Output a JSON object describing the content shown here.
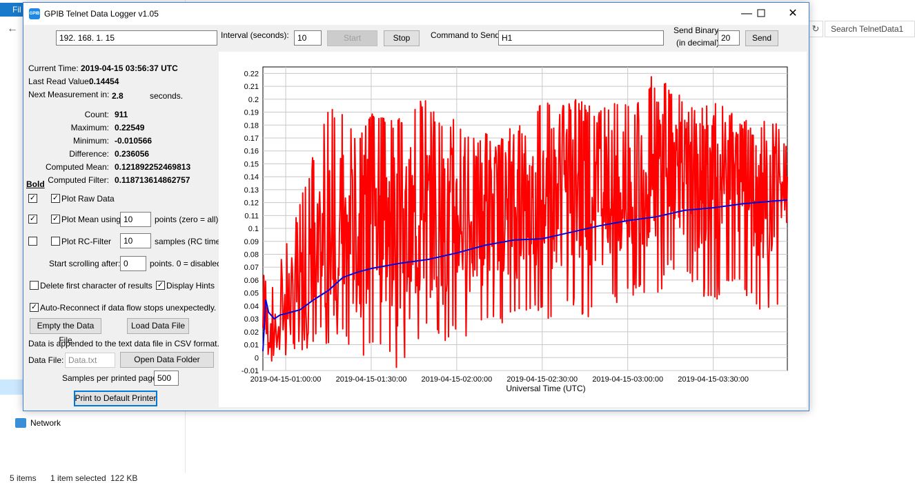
{
  "background": {
    "file_tab": "Fil",
    "network_label": "Network",
    "search_placeholder": "Search TelnetData1",
    "status_items": "5 items",
    "status_selected": "1 item selected",
    "status_size": "122 KB"
  },
  "window": {
    "title": "GPIB Telnet Data Logger v1.05",
    "icon_text": "GPIB"
  },
  "toolbar": {
    "ip_value": "192. 168. 1. 15",
    "interval_label": "Interval (seconds):",
    "interval_value": "10",
    "start_label": "Start",
    "stop_label": "Stop",
    "command_label": "Command to Send:",
    "command_value": "H1",
    "send_binary_label1": "Send Binary",
    "send_binary_label2": "(in decimal)",
    "send_binary_value": "20",
    "send_label": "Send"
  },
  "status": {
    "current_time_label": "Current Time:",
    "current_time_value": "2019-04-15 03:56:37 UTC",
    "last_read_label": "Last Read Value:",
    "last_read_value": "0.14454",
    "next_meas_label": "Next Measurement in:",
    "next_meas_value": "2.8",
    "next_meas_unit": "seconds."
  },
  "stats": {
    "count_label": "Count:",
    "count_value": "911",
    "max_label": "Maximum:",
    "max_value": "0.22549",
    "min_label": "Minimum:",
    "min_value": "-0.010566",
    "diff_label": "Difference:",
    "diff_value": "0.236056",
    "mean_label": "Computed Mean:",
    "mean_value": "0.121892252469813",
    "filter_label": "Computed Filter:",
    "filter_value": "0.118713614862757"
  },
  "options": {
    "bold_label": "Bold",
    "plot_raw_label": "Plot Raw Data",
    "plot_mean_label": "Plot Mean using",
    "plot_mean_value": "10",
    "plot_mean_unit": "points (zero = all).",
    "plot_rc_label": "Plot RC-Filter",
    "plot_rc_value": "10",
    "plot_rc_unit": "samples (RC time)",
    "scroll_label": "Start scrolling after:",
    "scroll_value": "0",
    "scroll_unit": "points.  0 = disabled.",
    "delete_first_label": "Delete first character of results",
    "display_hints_label": "Display Hints",
    "auto_reconnect_label": "Auto-Reconnect if data flow stops unexpectedly.",
    "check_mark": "✓"
  },
  "file": {
    "empty_label": "Empty the Data File",
    "load_label": "Load Data File",
    "append_note": "Data is appended to the text data file in CSV format.",
    "data_file_label": "Data File:",
    "data_file_placeholder": "Data.txt",
    "open_folder_label": "Open Data Folder",
    "samples_label": "Samples per printed page:",
    "samples_value": "500",
    "print_label": "Print to Default Printer"
  },
  "chart_data": {
    "type": "line",
    "xlabel": "Universal Time (UTC)",
    "ylabel": "",
    "ylim": [
      -0.01,
      0.225
    ],
    "y_ticks": [
      "0.22",
      "0.21",
      "0.2",
      "0.19",
      "0.18",
      "0.17",
      "0.16",
      "0.15",
      "0.14",
      "0.13",
      "0.12",
      "0.11",
      "0.1",
      "0.09",
      "0.08",
      "0.07",
      "0.06",
      "0.05",
      "0.04",
      "0.03",
      "0.02",
      "0.01",
      "0",
      "-0.01"
    ],
    "x_ticks": [
      "2019-04-15-01:00:00",
      "2019-04-15-01:30:00",
      "2019-04-15-02:00:00",
      "2019-04-15-02:30:00",
      "2019-04-15-03:00:00",
      "2019-04-15-03:30:00"
    ],
    "x_range": [
      "2019-04-15 00:52:00",
      "2019-04-15 03:56:30"
    ],
    "grid": true,
    "series": [
      {
        "color": "#ff0000",
        "style": "raw",
        "x": [
          "00:52",
          "01:00",
          "01:05",
          "01:10",
          "01:15",
          "01:20",
          "01:25",
          "01:30",
          "01:35",
          "01:40",
          "01:45",
          "01:50",
          "01:55",
          "02:00",
          "02:05",
          "02:10",
          "02:15",
          "02:20",
          "02:25",
          "02:30",
          "02:35",
          "02:40",
          "02:45",
          "02:50",
          "02:55",
          "03:00",
          "03:05",
          "03:10",
          "03:15",
          "03:20",
          "03:25",
          "03:30",
          "03:35",
          "03:40",
          "03:45",
          "03:50",
          "03:56"
        ],
        "y": [
          0.02,
          0.04,
          0.05,
          0.06,
          0.09,
          0.1,
          0.09,
          0.1,
          0.1,
          0.09,
          0.1,
          0.11,
          0.1,
          0.11,
          0.1,
          0.11,
          0.12,
          0.11,
          0.12,
          0.12,
          0.13,
          0.12,
          0.13,
          0.13,
          0.12,
          0.13,
          0.14,
          0.15,
          0.16,
          0.14,
          0.13,
          0.14,
          0.15,
          0.14,
          0.13,
          0.12,
          0.14
        ],
        "y_high": [
          0.065,
          0.09,
          0.12,
          0.16,
          0.195,
          0.19,
          0.17,
          0.19,
          0.19,
          0.185,
          0.2,
          0.2,
          0.18,
          0.19,
          0.17,
          0.18,
          0.17,
          0.18,
          0.18,
          0.2,
          0.195,
          0.2,
          0.2,
          0.19,
          0.2,
          0.2,
          0.205,
          0.225,
          0.21,
          0.2,
          0.195,
          0.2,
          0.19,
          0.185,
          0.18,
          0.19,
          0.17
        ],
        "y_low": [
          -0.005,
          0.0,
          0.005,
          0.01,
          0.005,
          0.015,
          -0.005,
          0.01,
          0.0,
          -0.01,
          0.01,
          0.02,
          0.01,
          0.02,
          0.015,
          0.03,
          0.02,
          0.03,
          0.035,
          0.03,
          0.03,
          0.04,
          0.03,
          0.03,
          0.04,
          0.045,
          0.05,
          0.04,
          0.07,
          0.06,
          0.05,
          0.04,
          0.06,
          0.05,
          0.04,
          0.03,
          0.05
        ]
      },
      {
        "color": "#0000dd",
        "style": "mean",
        "x": [
          "00:52",
          "00:53",
          "00:54",
          "00:56",
          "00:58",
          "01:00",
          "01:05",
          "01:10",
          "01:15",
          "01:20",
          "01:25",
          "01:30",
          "01:40",
          "01:50",
          "02:00",
          "02:10",
          "02:20",
          "02:30",
          "02:40",
          "02:50",
          "03:00",
          "03:10",
          "03:20",
          "03:30",
          "03:40",
          "03:50",
          "03:56"
        ],
        "y": [
          0.005,
          0.045,
          0.035,
          0.03,
          0.033,
          0.034,
          0.037,
          0.045,
          0.052,
          0.062,
          0.066,
          0.069,
          0.073,
          0.076,
          0.081,
          0.087,
          0.091,
          0.092,
          0.097,
          0.102,
          0.106,
          0.109,
          0.114,
          0.116,
          0.119,
          0.121,
          0.122
        ]
      }
    ]
  }
}
